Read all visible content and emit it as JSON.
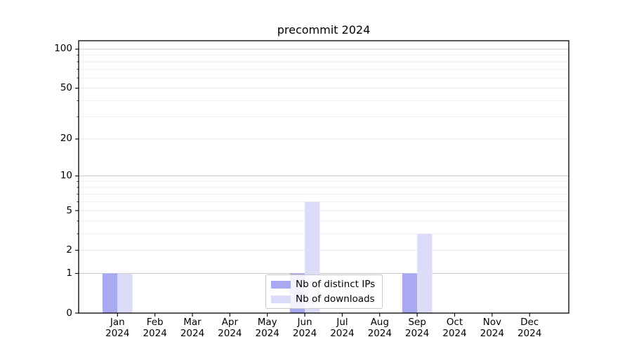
{
  "colors": {
    "ips": "#a9a9f1",
    "downloads": "#dcdcf8",
    "grid_decade": "#c8c8c8",
    "grid_major": "#e6e6e6",
    "grid_minor": "#efefef",
    "axis": "#000000",
    "legend_border": "#c9c9c9",
    "background": "#ffffff"
  },
  "chart_data": {
    "type": "bar",
    "title": "precommit 2024",
    "categories": [
      "Jan",
      "Feb",
      "Mar",
      "Apr",
      "May",
      "Jun",
      "Jul",
      "Aug",
      "Sep",
      "Oct",
      "Nov",
      "Dec"
    ],
    "category_year": "2024",
    "series": [
      {
        "name": "Nb of distinct IPs",
        "color_key": "ips",
        "values": [
          1,
          0,
          0,
          0,
          0,
          1,
          0,
          0,
          1,
          0,
          0,
          0
        ]
      },
      {
        "name": "Nb of downloads",
        "color_key": "downloads",
        "values": [
          1,
          0,
          0,
          0,
          0,
          6,
          0,
          0,
          3,
          0,
          0,
          0
        ]
      }
    ],
    "yscale": "log1p",
    "ylim": [
      0,
      116
    ],
    "y_ticks": [
      0,
      1,
      2,
      5,
      10,
      20,
      50,
      100
    ],
    "y_decade_ticks": [
      1,
      10,
      100
    ],
    "y_minor_ticks": [
      3,
      4,
      6,
      7,
      8,
      9,
      30,
      40,
      60,
      70,
      80,
      90
    ],
    "grid": true,
    "legend_position": "lower center",
    "xlabel": "",
    "ylabel": ""
  }
}
